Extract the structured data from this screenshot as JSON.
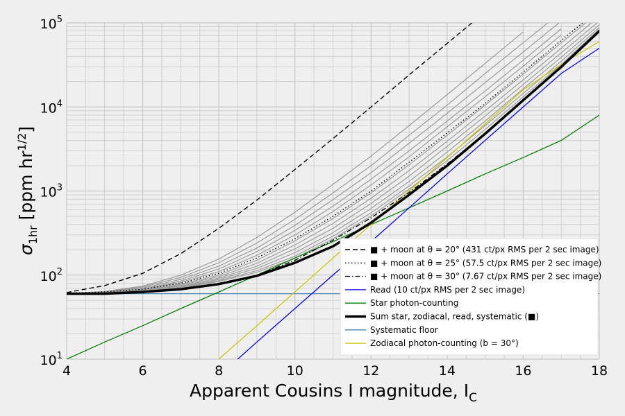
{
  "chart_data": {
    "type": "line",
    "xlabel": "Apparent Cousins I magnitude, I",
    "xlabel_sub": "C",
    "ylabel_main": "σ",
    "ylabel_sub": "1hr",
    "ylabel_unit_prefix": " [ppm hr",
    "ylabel_unit_sup": "1/2",
    "ylabel_unit_suffix": "]",
    "xlim": [
      4,
      18
    ],
    "ylim": [
      10,
      100000
    ],
    "y_scale": "log",
    "grid": true,
    "x_ticks": [
      4,
      6,
      8,
      10,
      12,
      14,
      16,
      18
    ],
    "x_tick_labels": [
      "4",
      "6",
      "8",
      "10",
      "12",
      "14",
      "16",
      "18"
    ],
    "y_tick_labels": [
      {
        "base": "10",
        "exp": "1",
        "value": 10
      },
      {
        "base": "10",
        "exp": "2",
        "value": 100
      },
      {
        "base": "10",
        "exp": "3",
        "value": 1000
      },
      {
        "base": "10",
        "exp": "4",
        "value": 10000
      },
      {
        "base": "10",
        "exp": "5",
        "value": 100000
      }
    ],
    "legend_position": "lower-right",
    "x": [
      4,
      5,
      6,
      7,
      8,
      9,
      10,
      11,
      12,
      13,
      14,
      15,
      16,
      17,
      18
    ],
    "series": [
      {
        "name": "■ + moon at θ = 20° (431 ct/px RMS per 2 sec image)",
        "style": "dashed",
        "color": "#000000",
        "values": [
          62,
          75,
          105,
          180,
          360,
          780,
          1800,
          4200,
          10000,
          24000,
          57000,
          135000,
          null,
          null,
          null
        ]
      },
      {
        "name": "■ + moon at θ = 25° (57.5 ct/px RMS per 2 sec image)",
        "style": "dotted",
        "color": "#000000",
        "values": [
          61,
          63,
          68,
          80,
          105,
          160,
          270,
          500,
          1000,
          2200,
          4900,
          11000,
          26000,
          62000,
          145000
        ]
      },
      {
        "name": "■ + moon at θ = 30° (7.67 ct/px RMS per 2 sec image)",
        "style": "dashdot",
        "color": "#000000",
        "values": [
          60,
          61,
          64,
          69,
          80,
          100,
          150,
          260,
          480,
          960,
          2100,
          4800,
          12000,
          30000,
          82000
        ]
      },
      {
        "name": "Read (10 ct/px RMS per 2 sec image)",
        "style": "solid",
        "color": "#0000ff",
        "values": [
          null,
          null,
          null,
          null,
          6.3,
          16,
          40,
          100,
          250,
          630,
          1600,
          4000,
          10000,
          25000,
          50000
        ]
      },
      {
        "name": "Star photon-counting",
        "style": "solid",
        "color": "#008000",
        "values": [
          10,
          16,
          25,
          40,
          63,
          100,
          160,
          250,
          400,
          630,
          1000,
          1600,
          2500,
          4000,
          8000
        ]
      },
      {
        "name": "Sum star, zodiacal, read, systematic (■)",
        "style": "solid-thick",
        "color": "#000000",
        "values": [
          60,
          60,
          63,
          68,
          78,
          98,
          140,
          220,
          420,
          900,
          2000,
          4800,
          12000,
          30000,
          80000
        ]
      },
      {
        "name": "Systematic floor",
        "style": "solid",
        "color": "#4682b4",
        "values": [
          60,
          60,
          60,
          60,
          60,
          60,
          60,
          60,
          60,
          60,
          60,
          60,
          60,
          60,
          60
        ]
      },
      {
        "name": "Zodiacal photon-counting (b = 30°)",
        "style": "solid",
        "color": "#c8c800",
        "values": [
          null,
          null,
          null,
          null,
          10,
          25,
          63,
          160,
          400,
          1000,
          2500,
          6300,
          16000,
          32000,
          60000
        ]
      }
    ],
    "gray_series": [
      [
        60,
        64,
        74,
        100,
        155,
        280,
        560,
        1200,
        2600,
        6000,
        14000,
        33000,
        78000,
        null,
        null
      ],
      [
        60,
        63,
        72,
        94,
        140,
        240,
        460,
        950,
        2000,
        4600,
        10500,
        25000,
        58000,
        135000,
        null
      ],
      [
        60,
        63,
        70,
        89,
        128,
        210,
        390,
        790,
        1650,
        3700,
        8400,
        19500,
        45000,
        105000,
        null
      ],
      [
        60,
        62,
        68,
        85,
        118,
        190,
        340,
        660,
        1380,
        3000,
        6800,
        15500,
        36000,
        85000,
        null
      ],
      [
        60,
        62,
        67,
        82,
        110,
        172,
        300,
        570,
        1180,
        2550,
        5800,
        13200,
        30500,
        72000,
        null
      ],
      [
        60,
        62,
        66,
        78,
        100,
        150,
        255,
        470,
        950,
        2050,
        4600,
        10500,
        24500,
        58000,
        135000
      ],
      [
        60,
        61,
        65,
        76,
        96,
        138,
        228,
        410,
        820,
        1750,
        3900,
        9000,
        21000,
        50000,
        120000
      ],
      [
        60,
        61,
        65,
        74,
        92,
        128,
        205,
        360,
        710,
        1500,
        3400,
        7800,
        18500,
        44000,
        105000
      ],
      [
        60,
        61,
        64,
        72,
        89,
        120,
        185,
        320,
        620,
        1300,
        2900,
        6800,
        16500,
        39000,
        95000
      ],
      [
        60,
        61,
        64,
        71,
        86,
        113,
        168,
        290,
        550,
        1150,
        2550,
        6000,
        14500,
        35000,
        88000
      ],
      [
        60,
        61,
        64,
        70,
        84,
        108,
        158,
        270,
        505,
        1050,
        2300,
        5400,
        13200,
        32000,
        84000
      ]
    ]
  }
}
